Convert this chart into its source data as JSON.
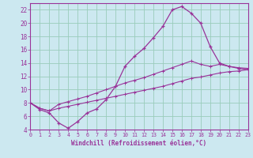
{
  "xlabel": "Windchill (Refroidissement éolien,°C)",
  "bg_color": "#cce8f0",
  "line_color": "#993399",
  "grid_color": "#99ccbb",
  "xlim": [
    0,
    23
  ],
  "ylim": [
    4,
    23
  ],
  "xticks": [
    0,
    1,
    2,
    3,
    4,
    5,
    6,
    7,
    8,
    9,
    10,
    11,
    12,
    13,
    14,
    15,
    16,
    17,
    18,
    19,
    20,
    21,
    22,
    23
  ],
  "yticks": [
    4,
    6,
    8,
    10,
    12,
    14,
    16,
    18,
    20,
    22
  ],
  "series1_x": [
    0,
    1,
    2,
    3,
    4,
    5,
    6,
    7,
    8,
    9,
    10,
    11,
    12,
    13,
    14,
    15,
    16,
    17,
    18,
    19,
    20,
    21,
    22,
    23
  ],
  "series1_y": [
    8.0,
    7.0,
    6.5,
    5.0,
    4.2,
    5.2,
    6.5,
    7.1,
    8.5,
    10.5,
    13.5,
    15.0,
    16.2,
    17.8,
    19.5,
    22.0,
    22.5,
    21.5,
    20.0,
    16.5,
    14.0,
    13.5,
    13.2,
    13.0
  ],
  "series2_x": [
    0,
    1,
    2,
    3,
    4,
    5,
    6,
    7,
    8,
    9,
    10,
    11,
    12,
    13,
    14,
    15,
    16,
    17,
    18,
    19,
    20,
    21,
    22,
    23
  ],
  "series2_y": [
    8.0,
    7.2,
    6.8,
    7.8,
    8.2,
    8.6,
    9.0,
    9.5,
    10.0,
    10.5,
    11.0,
    11.4,
    11.8,
    12.3,
    12.8,
    13.3,
    13.8,
    14.3,
    13.8,
    13.5,
    13.8,
    13.5,
    13.3,
    13.2
  ],
  "series3_x": [
    0,
    1,
    2,
    3,
    4,
    5,
    6,
    7,
    8,
    9,
    10,
    11,
    12,
    13,
    14,
    15,
    16,
    17,
    18,
    19,
    20,
    21,
    22,
    23
  ],
  "series3_y": [
    8.0,
    7.2,
    6.8,
    7.2,
    7.5,
    7.8,
    8.1,
    8.4,
    8.7,
    9.0,
    9.3,
    9.6,
    9.9,
    10.2,
    10.5,
    10.9,
    11.3,
    11.7,
    11.9,
    12.2,
    12.5,
    12.7,
    12.8,
    13.0
  ]
}
